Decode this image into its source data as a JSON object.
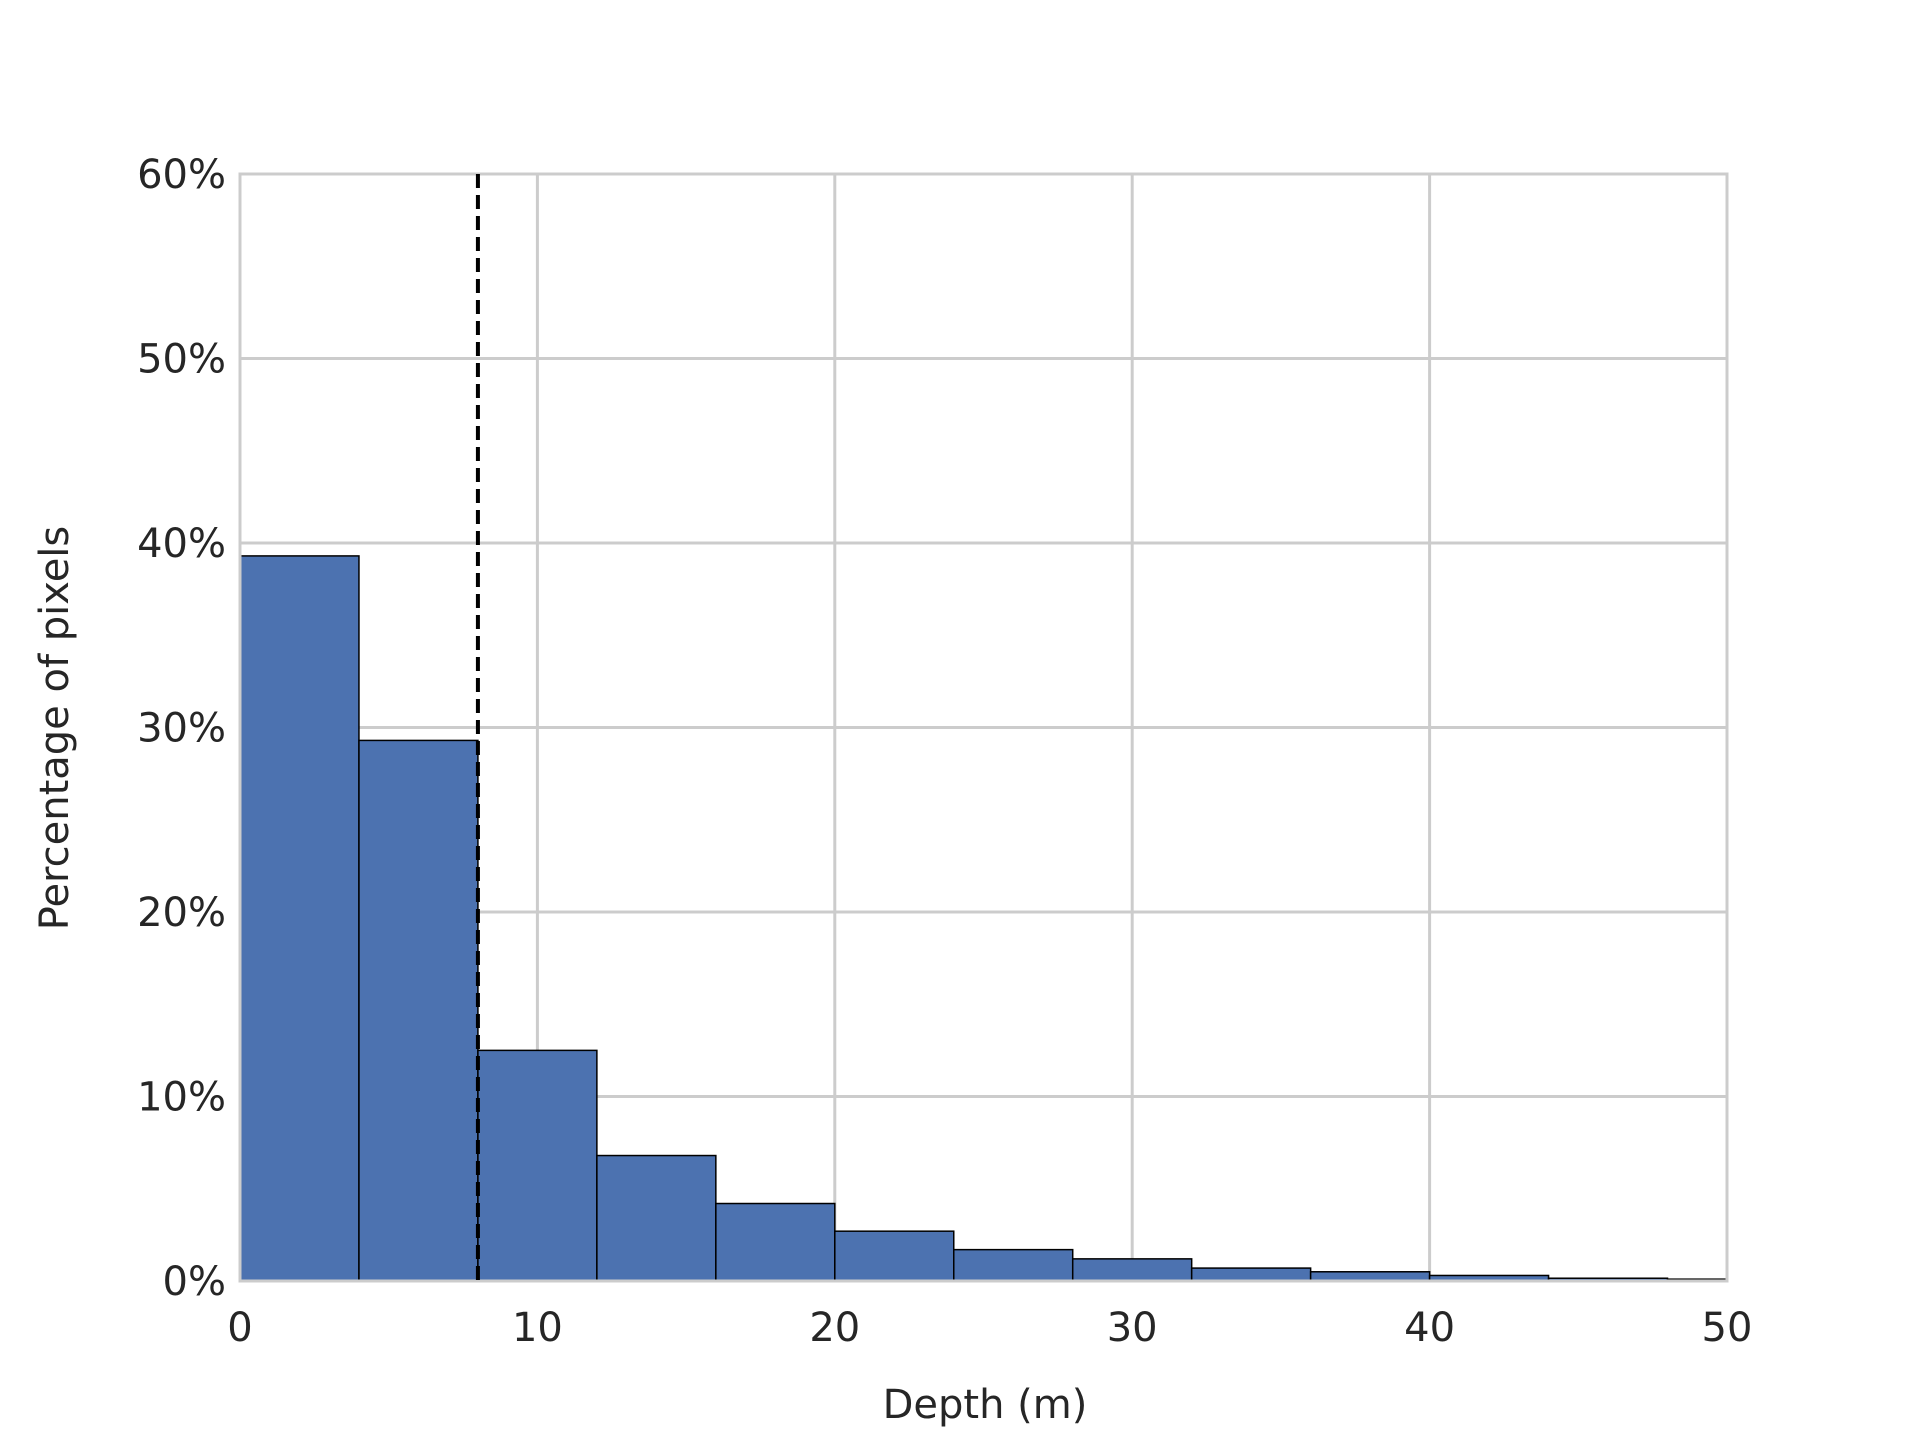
{
  "chart_data": {
    "type": "histogram",
    "x_label": "Depth (m)",
    "y_label": "Percentage of pixels",
    "bins": [
      0,
      4,
      8,
      12,
      16,
      20,
      24,
      28,
      32,
      36,
      40,
      44,
      48,
      50
    ],
    "values": [
      39.3,
      29.3,
      12.5,
      6.8,
      4.2,
      2.7,
      1.7,
      1.2,
      0.7,
      0.5,
      0.3,
      0.15,
      0.1
    ],
    "color": "#4c72b0",
    "edge_color": "#000000",
    "xlim": [
      0,
      50
    ],
    "xticks": [
      0,
      10,
      20,
      30,
      40,
      50
    ],
    "ylim": [
      0,
      60
    ],
    "yticks": [
      {
        "value": 0,
        "label": "0%"
      },
      {
        "value": 10,
        "label": "10%"
      },
      {
        "value": 20,
        "label": "20%"
      },
      {
        "value": 30,
        "label": "30%"
      },
      {
        "value": 40,
        "label": "40%"
      },
      {
        "value": 50,
        "label": "50%"
      },
      {
        "value": 60,
        "label": "60%"
      }
    ],
    "vline": 8,
    "vline_color": "#000000",
    "grid": true
  }
}
